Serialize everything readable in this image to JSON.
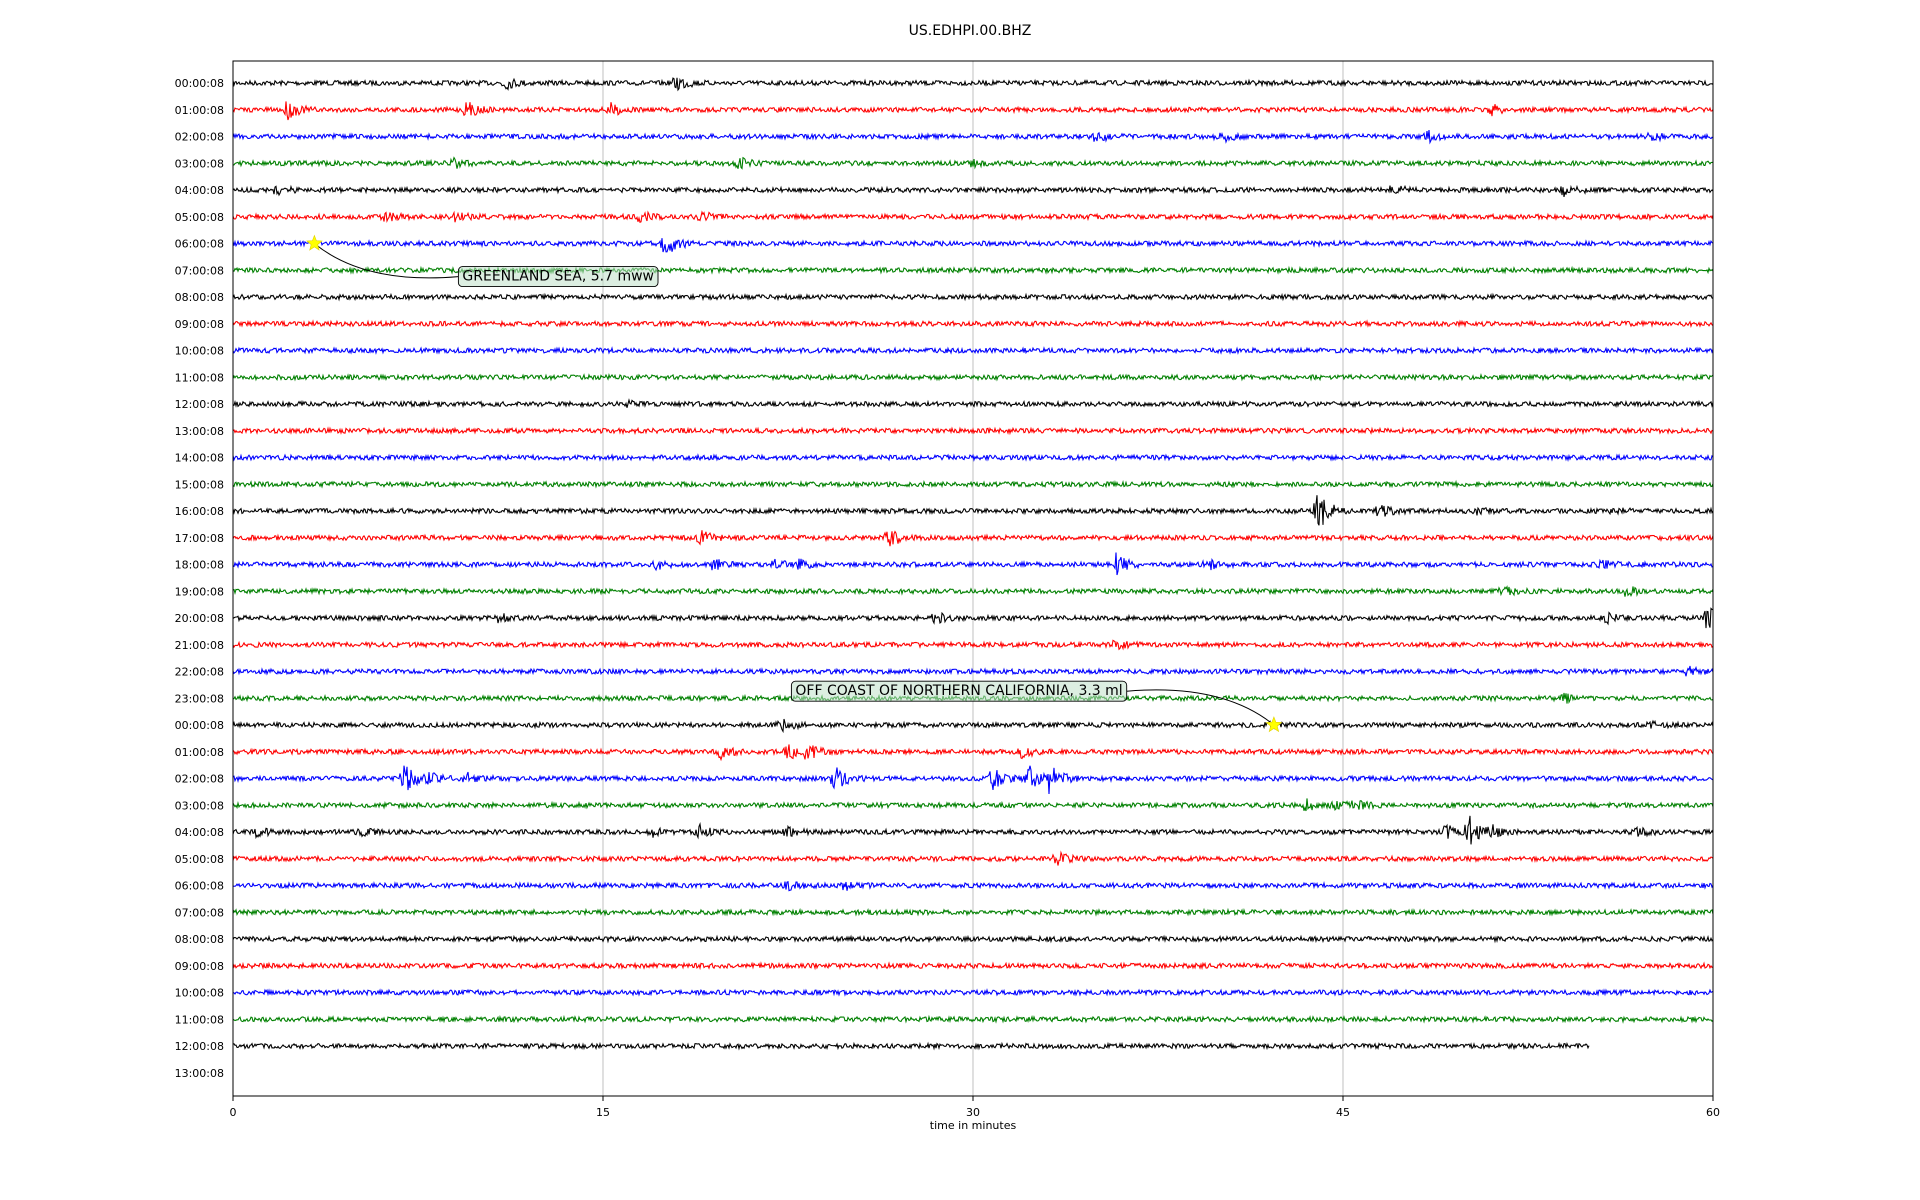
{
  "chart_data": {
    "type": "line",
    "title": "US.EDHPI.00.BHZ",
    "xlabel": "time in minutes",
    "ylabel": "",
    "xlim": [
      0,
      60
    ],
    "xticks": [
      "0",
      "15",
      "30",
      "45",
      "60"
    ],
    "xtick_values": [
      0,
      15,
      30,
      45,
      60
    ],
    "grid": "vertical",
    "trace_colors": [
      "#000000",
      "#ff0000",
      "#0000ff",
      "#008000"
    ],
    "row_labels": [
      "00:00:08",
      "01:00:08",
      "02:00:08",
      "03:00:08",
      "04:00:08",
      "05:00:08",
      "06:00:08",
      "07:00:08",
      "08:00:08",
      "09:00:08",
      "10:00:08",
      "11:00:08",
      "12:00:08",
      "13:00:08",
      "14:00:08",
      "15:00:08",
      "16:00:08",
      "17:00:08",
      "18:00:08",
      "19:00:08",
      "20:00:08",
      "21:00:08",
      "22:00:08",
      "23:00:08",
      "00:00:08",
      "01:00:08",
      "02:00:08",
      "03:00:08",
      "04:00:08",
      "05:00:08",
      "06:00:08",
      "07:00:08",
      "08:00:08",
      "09:00:08",
      "10:00:08",
      "11:00:08",
      "12:00:08",
      "13:00:08"
    ],
    "trace_end_minutes": {
      "36": 55
    },
    "bursts": [
      {
        "row": 0,
        "t": 11,
        "a": 6
      },
      {
        "row": 0,
        "t": 18,
        "a": 8
      },
      {
        "row": 1,
        "t": 2.2,
        "a": 9
      },
      {
        "row": 1,
        "t": 9.5,
        "a": 7
      },
      {
        "row": 1,
        "t": 15.3,
        "a": 6
      },
      {
        "row": 1,
        "t": 51,
        "a": 5
      },
      {
        "row": 2,
        "t": 35,
        "a": 5
      },
      {
        "row": 2,
        "t": 40,
        "a": 6
      },
      {
        "row": 2,
        "t": 48.5,
        "a": 5
      },
      {
        "row": 2,
        "t": 57.5,
        "a": 4
      },
      {
        "row": 3,
        "t": 9,
        "a": 4
      },
      {
        "row": 3,
        "t": 20.5,
        "a": 5
      },
      {
        "row": 3,
        "t": 30,
        "a": 3
      },
      {
        "row": 4,
        "t": 1.8,
        "a": 4
      },
      {
        "row": 4,
        "t": 47,
        "a": 5
      },
      {
        "row": 4,
        "t": 54,
        "a": 7
      },
      {
        "row": 5,
        "t": 6.2,
        "a": 4
      },
      {
        "row": 5,
        "t": 9,
        "a": 4
      },
      {
        "row": 5,
        "t": 16.5,
        "a": 5
      },
      {
        "row": 5,
        "t": 19,
        "a": 4
      },
      {
        "row": 6,
        "t": 17.5,
        "a": 14
      },
      {
        "row": 12,
        "t": 16,
        "a": 2
      },
      {
        "row": 16,
        "t": 44,
        "a": 20
      },
      {
        "row": 16,
        "t": 46.5,
        "a": 6
      },
      {
        "row": 16,
        "t": 50.5,
        "a": 3
      },
      {
        "row": 16,
        "t": 56,
        "a": 3
      },
      {
        "row": 17,
        "t": 19,
        "a": 8
      },
      {
        "row": 17,
        "t": 26.6,
        "a": 9
      },
      {
        "row": 18,
        "t": 17.2,
        "a": 4
      },
      {
        "row": 18,
        "t": 19.5,
        "a": 5
      },
      {
        "row": 18,
        "t": 22,
        "a": 4
      },
      {
        "row": 18,
        "t": 23,
        "a": 4
      },
      {
        "row": 18,
        "t": 35.8,
        "a": 10
      },
      {
        "row": 18,
        "t": 39.5,
        "a": 5
      },
      {
        "row": 18,
        "t": 55.5,
        "a": 5
      },
      {
        "row": 19,
        "t": 51.5,
        "a": 4
      },
      {
        "row": 19,
        "t": 56.5,
        "a": 5
      },
      {
        "row": 20,
        "t": 10.8,
        "a": 4
      },
      {
        "row": 20,
        "t": 28.5,
        "a": 5
      },
      {
        "row": 20,
        "t": 55.7,
        "a": 4
      },
      {
        "row": 20,
        "t": 59.8,
        "a": 12
      },
      {
        "row": 21,
        "t": 35.8,
        "a": 5
      },
      {
        "row": 22,
        "t": 59,
        "a": 4
      },
      {
        "row": 23,
        "t": 54,
        "a": 4
      },
      {
        "row": 24,
        "t": 22.2,
        "a": 6
      },
      {
        "row": 24,
        "t": 42,
        "a": 3
      },
      {
        "row": 24,
        "t": 57.5,
        "a": 3
      },
      {
        "row": 25,
        "t": 19.8,
        "a": 6
      },
      {
        "row": 25,
        "t": 22.5,
        "a": 8
      },
      {
        "row": 25,
        "t": 23.3,
        "a": 7
      },
      {
        "row": 25,
        "t": 32,
        "a": 6
      },
      {
        "row": 26,
        "t": 6.9,
        "a": 16
      },
      {
        "row": 26,
        "t": 8,
        "a": 6
      },
      {
        "row": 26,
        "t": 9.5,
        "a": 5
      },
      {
        "row": 26,
        "t": 24.4,
        "a": 12
      },
      {
        "row": 26,
        "t": 30.8,
        "a": 10
      },
      {
        "row": 26,
        "t": 32.3,
        "a": 12
      },
      {
        "row": 26,
        "t": 33.1,
        "a": 14
      },
      {
        "row": 27,
        "t": 43.5,
        "a": 5
      },
      {
        "row": 27,
        "t": 44.7,
        "a": 5
      },
      {
        "row": 27,
        "t": 45.5,
        "a": 4
      },
      {
        "row": 28,
        "t": 0.9,
        "a": 5
      },
      {
        "row": 28,
        "t": 5.2,
        "a": 4
      },
      {
        "row": 28,
        "t": 17,
        "a": 4
      },
      {
        "row": 28,
        "t": 18.9,
        "a": 6
      },
      {
        "row": 28,
        "t": 22.5,
        "a": 4
      },
      {
        "row": 28,
        "t": 49.2,
        "a": 6
      },
      {
        "row": 28,
        "t": 50.1,
        "a": 16
      },
      {
        "row": 28,
        "t": 51,
        "a": 5
      },
      {
        "row": 28,
        "t": 57,
        "a": 4
      },
      {
        "row": 29,
        "t": 33.4,
        "a": 6
      },
      {
        "row": 30,
        "t": 22.5,
        "a": 4
      },
      {
        "row": 30,
        "t": 24.8,
        "a": 5
      }
    ],
    "events": [
      {
        "label": "GREENLAND SEA, 5.7 mww",
        "row": 6,
        "t": 3.3,
        "label_t": 9.3,
        "label_row": 7.2
      },
      {
        "label": "OFF COAST OF NORTHERN CALIFORNIA, 3.3 ml",
        "row": 24,
        "t": 42.2,
        "label_t": 22.8,
        "label_row": 22.7
      }
    ],
    "event_marker_color": "#ffff00"
  }
}
